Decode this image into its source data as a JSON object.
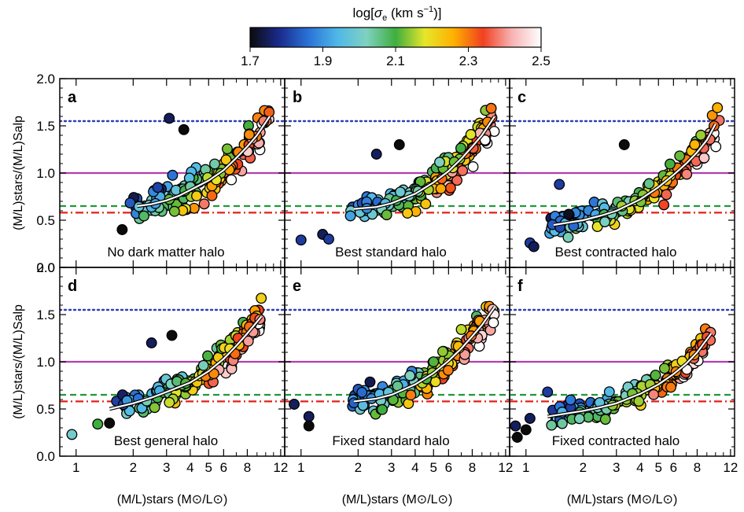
{
  "colorbar": {
    "title_prefix": "log[",
    "title_sigma": "σ",
    "title_sub": "e",
    "title_units": " (km s",
    "title_exp": "−1",
    "title_suffix": ")]",
    "ticks": [
      "1.7",
      "1.9",
      "2.1",
      "2.3",
      "2.5"
    ],
    "range": [
      1.7,
      2.5
    ],
    "stops": [
      "#0b0b0b",
      "#1a2a8c",
      "#2a72d6",
      "#4fb8e8",
      "#7fd1c0",
      "#3fae3f",
      "#e6e62a",
      "#ffb000",
      "#f04020",
      "#f7b3b3",
      "#ffffff"
    ]
  },
  "axes": {
    "xlabel": "(M/L)stars (M⊙/L⊙)",
    "ylabel": "(M/L)stars/(M/L)Salp",
    "x_ticks": [
      "1",
      "2",
      "3",
      "4",
      "5",
      "6",
      "8",
      "12"
    ],
    "y_ticks": [
      "0.0",
      "0.5",
      "1.0",
      "1.5",
      "2.0"
    ],
    "xlim": [
      0.82,
      12.6
    ],
    "ylim": [
      0.0,
      2.0
    ],
    "x_scale": "log"
  },
  "reference_lines": [
    {
      "y": 1.55,
      "color": "#2e3fb5",
      "style": "dotted"
    },
    {
      "y": 1.0,
      "color": "#b23fb0",
      "style": "solid"
    },
    {
      "y": 0.65,
      "color": "#1f9a3a",
      "style": "dashed"
    },
    {
      "y": 0.58,
      "color": "#e0201b",
      "style": "dashdot"
    }
  ],
  "chart_data": [
    {
      "type": "scatter",
      "panel": "a",
      "label": "No dark matter halo",
      "trend": {
        "x": [
          2.1,
          2.5,
          3.0,
          3.5,
          4.0,
          5.0,
          6.0,
          7.0,
          8.0,
          9.0,
          10.5
        ],
        "y": [
          0.65,
          0.67,
          0.71,
          0.76,
          0.82,
          0.92,
          1.03,
          1.16,
          1.28,
          1.4,
          1.6
        ]
      },
      "cloud": {
        "x0": 1.8,
        "x1": 10.5,
        "spread": 0.16
      },
      "outliers": [
        {
          "x": 1.75,
          "y": 0.4,
          "c": 1.6
        },
        {
          "x": 3.7,
          "y": 1.46,
          "c": 1.6
        },
        {
          "x": 3.1,
          "y": 1.58,
          "c": 1.75
        }
      ]
    },
    {
      "type": "scatter",
      "panel": "b",
      "label": "Best standard halo",
      "trend": {
        "x": [
          1.9,
          2.5,
          3.0,
          4.0,
          5.0,
          6.0,
          7.0,
          8.0,
          9.0,
          10.5
        ],
        "y": [
          0.62,
          0.64,
          0.68,
          0.78,
          0.9,
          1.02,
          1.15,
          1.28,
          1.4,
          1.6
        ]
      },
      "cloud": {
        "x0": 1.8,
        "x1": 10.5,
        "spread": 0.15
      },
      "outliers": [
        {
          "x": 1.0,
          "y": 0.29,
          "c": 1.8
        },
        {
          "x": 1.3,
          "y": 0.35,
          "c": 1.75
        },
        {
          "x": 1.4,
          "y": 0.3,
          "c": 1.8
        },
        {
          "x": 2.5,
          "y": 1.2,
          "c": 1.75
        },
        {
          "x": 3.3,
          "y": 1.3,
          "c": 1.6
        }
      ]
    },
    {
      "type": "scatter",
      "panel": "c",
      "label": "Best contracted halo",
      "trend": {
        "x": [
          1.4,
          2.0,
          2.5,
          3.0,
          4.0,
          5.0,
          6.0,
          7.0,
          8.0,
          9.0,
          10.0
        ],
        "y": [
          0.45,
          0.5,
          0.55,
          0.6,
          0.72,
          0.85,
          0.98,
          1.1,
          1.22,
          1.35,
          1.52
        ]
      },
      "cloud": {
        "x0": 1.3,
        "x1": 10.5,
        "spread": 0.14
      },
      "outliers": [
        {
          "x": 1.05,
          "y": 0.26,
          "c": 1.8
        },
        {
          "x": 1.1,
          "y": 0.22,
          "c": 1.75
        },
        {
          "x": 1.5,
          "y": 0.88,
          "c": 1.8
        },
        {
          "x": 3.3,
          "y": 1.3,
          "c": 1.6
        }
      ]
    },
    {
      "type": "scatter",
      "panel": "d",
      "label": "Best general halo",
      "trend": {
        "x": [
          1.5,
          2.0,
          2.5,
          3.0,
          4.0,
          5.0,
          6.0,
          7.0,
          8.0,
          9.5
        ],
        "y": [
          0.5,
          0.56,
          0.62,
          0.68,
          0.78,
          0.9,
          1.03,
          1.17,
          1.3,
          1.48
        ]
      },
      "cloud": {
        "x0": 1.5,
        "x1": 9.5,
        "spread": 0.15
      },
      "outliers": [
        {
          "x": 0.95,
          "y": 0.23,
          "c": 2.0
        },
        {
          "x": 1.3,
          "y": 0.34,
          "c": 2.1
        },
        {
          "x": 1.5,
          "y": 0.35,
          "c": 1.6
        },
        {
          "x": 2.5,
          "y": 1.2,
          "c": 1.75
        },
        {
          "x": 3.2,
          "y": 1.28,
          "c": 1.6
        }
      ]
    },
    {
      "type": "scatter",
      "panel": "e",
      "label": "Fixed standard halo",
      "trend": {
        "x": [
          1.9,
          2.5,
          3.0,
          4.0,
          5.0,
          6.0,
          7.0,
          8.0,
          9.0,
          10.5
        ],
        "y": [
          0.58,
          0.61,
          0.65,
          0.76,
          0.88,
          1.01,
          1.14,
          1.27,
          1.39,
          1.58
        ]
      },
      "cloud": {
        "x0": 1.8,
        "x1": 10.5,
        "spread": 0.16
      },
      "outliers": [
        {
          "x": 0.92,
          "y": 0.55,
          "c": 1.75
        },
        {
          "x": 1.1,
          "y": 0.42,
          "c": 1.75
        },
        {
          "x": 1.1,
          "y": 0.32,
          "c": 1.6
        }
      ]
    },
    {
      "type": "scatter",
      "panel": "f",
      "label": "Fixed contracted halo",
      "trend": {
        "x": [
          1.3,
          2.0,
          2.5,
          3.0,
          4.0,
          5.0,
          6.0,
          7.0,
          8.0,
          9.5
        ],
        "y": [
          0.42,
          0.48,
          0.52,
          0.56,
          0.66,
          0.76,
          0.87,
          0.98,
          1.1,
          1.3
        ]
      },
      "cloud": {
        "x0": 1.3,
        "x1": 9.5,
        "spread": 0.12
      },
      "outliers": [
        {
          "x": 0.9,
          "y": 0.2,
          "c": 1.6
        },
        {
          "x": 1.0,
          "y": 0.28,
          "c": 1.6
        },
        {
          "x": 0.88,
          "y": 0.32,
          "c": 1.75
        },
        {
          "x": 1.05,
          "y": 0.4,
          "c": 1.75
        },
        {
          "x": 1.3,
          "y": 0.68,
          "c": 1.8
        }
      ]
    }
  ]
}
